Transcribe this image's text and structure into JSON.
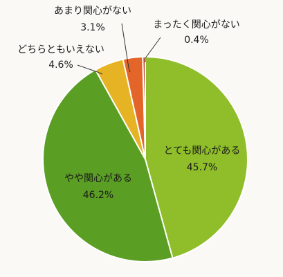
{
  "chart_data": {
    "type": "pie",
    "title": "",
    "start_angle_deg": 0,
    "direction": "clockwise",
    "slices": [
      {
        "label": "とても関心がある",
        "value": 45.7,
        "value_label": "45.7%",
        "color": "#8fbe2a"
      },
      {
        "label": "やや関心がある",
        "value": 46.2,
        "value_label": "46.2%",
        "color": "#5a9e24"
      },
      {
        "label": "どちらともいえない",
        "value": 4.6,
        "value_label": "4.6%",
        "color": "#e6b324"
      },
      {
        "label": "あまり関心がない",
        "value": 3.1,
        "value_label": "3.1%",
        "color": "#e4652a"
      },
      {
        "label": "まったく関心がない",
        "value": 0.4,
        "value_label": "0.4%",
        "color": "#b7352c"
      }
    ],
    "legend": "none",
    "label_placement": [
      "inside",
      "inside",
      "outside-leader",
      "outside-leader",
      "outside-leader"
    ]
  }
}
